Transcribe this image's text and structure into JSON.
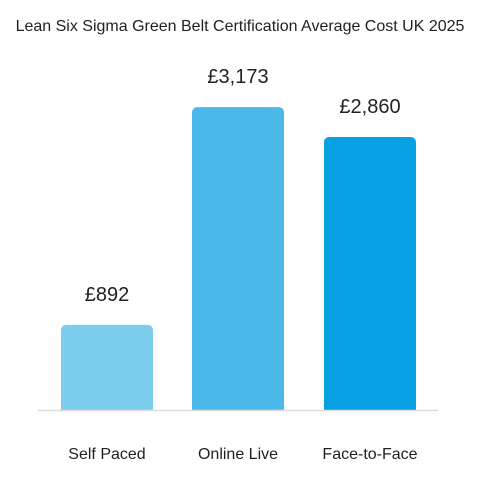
{
  "chart_data": {
    "type": "bar",
    "title": "Lean Six Sigma Green Belt Certification Average Cost UK 2025",
    "categories": [
      "Self Paced",
      "Online Live",
      "Face-to-Face"
    ],
    "values": [
      892,
      3173,
      2860
    ],
    "value_labels": [
      "£892",
      "£3,173",
      "£2,860"
    ],
    "bar_colors": [
      "#7ccdee",
      "#4ab8e8",
      "#07a0e3"
    ],
    "axis_color": "#dddddd",
    "text_color": "#222222",
    "ylim": [
      0,
      3300
    ],
    "grid": false,
    "legend": "none"
  }
}
